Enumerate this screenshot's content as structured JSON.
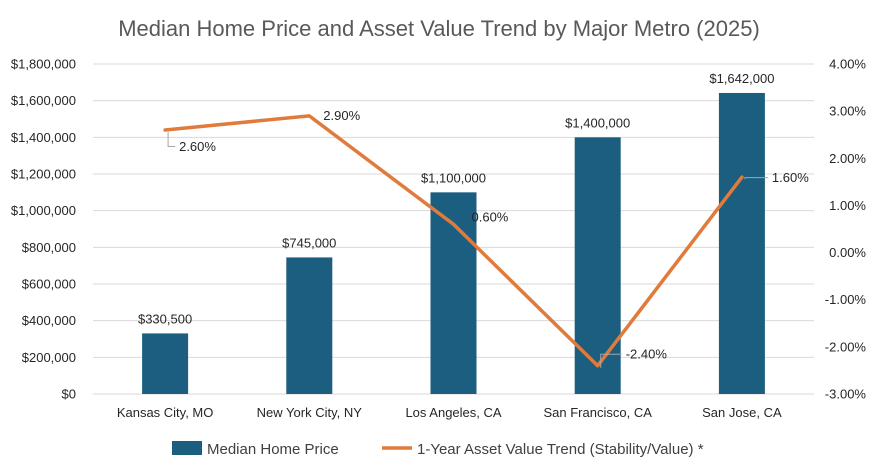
{
  "chart_data": {
    "type": "bar",
    "title": "Median Home Price and Asset Value Trend by Major Metro (2025)",
    "categories": [
      "Kansas City, MO",
      "New York City, NY",
      "Los Angeles, CA",
      "San Francisco, CA",
      "San Jose, CA"
    ],
    "series": [
      {
        "name": "Median Home Price",
        "type": "bar",
        "axis": "left",
        "color": "#1b5e80",
        "values": [
          330500,
          745000,
          1100000,
          1400000,
          1642000
        ],
        "labels": [
          "$330,500",
          "$745,000",
          "$1,100,000",
          "$1,400,000",
          "$1,642,000"
        ]
      },
      {
        "name": "1-Year Asset Value Trend (Stability/Value) *",
        "type": "line",
        "axis": "right",
        "color": "#e07b3c",
        "values": [
          2.6,
          2.9,
          0.6,
          -2.4,
          1.6
        ],
        "labels": [
          "2.60%",
          "2.90%",
          "0.60%",
          "-2.40%",
          "1.60%"
        ]
      }
    ],
    "y_left": {
      "min": 0,
      "max": 1800000,
      "step": 200000,
      "tick_labels": [
        "$0",
        "$200,000",
        "$400,000",
        "$600,000",
        "$800,000",
        "$1,000,000",
        "$1,200,000",
        "$1,400,000",
        "$1,600,000",
        "$1,800,000"
      ]
    },
    "y_right": {
      "min": -3,
      "max": 4,
      "step": 1,
      "tick_labels": [
        "-3.00%",
        "-2.00%",
        "-1.00%",
        "0.00%",
        "1.00%",
        "2.00%",
        "3.00%",
        "4.00%"
      ]
    },
    "grid": true,
    "legend_position": "bottom"
  }
}
